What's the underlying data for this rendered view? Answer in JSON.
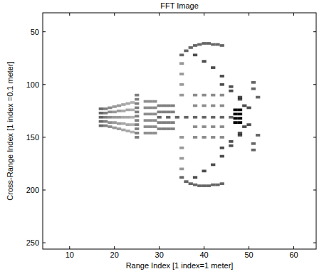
{
  "chart_data": {
    "type": "heatmap",
    "title": "FFT Image",
    "x_label": "Range Index  [1 index=1 meter]",
    "y_label": "Cross-Range Index  [1 index =0.1 meter]",
    "xlim": [
      4,
      65
    ],
    "xticks": [
      10,
      20,
      30,
      40,
      50,
      60
    ],
    "ylim": [
      32,
      256
    ],
    "yticks": [
      50,
      100,
      150,
      200,
      250
    ],
    "clim": [
      0,
      1
    ],
    "color": "#000000",
    "cells": [
      [
        17,
        123,
        0.6
      ],
      [
        17,
        127,
        0.6
      ],
      [
        17,
        131,
        0.6
      ],
      [
        17,
        135,
        0.6
      ],
      [
        17,
        139,
        0.6
      ],
      [
        18,
        123,
        0.5
      ],
      [
        18,
        127,
        0.5
      ],
      [
        18,
        131,
        0.5
      ],
      [
        18,
        135,
        0.5
      ],
      [
        18,
        139,
        0.5
      ],
      [
        19,
        122,
        0.45
      ],
      [
        19,
        126,
        0.45
      ],
      [
        19,
        131,
        0.45
      ],
      [
        19,
        136,
        0.45
      ],
      [
        19,
        140,
        0.45
      ],
      [
        20,
        121,
        0.4
      ],
      [
        20,
        126,
        0.4
      ],
      [
        20,
        131,
        0.4
      ],
      [
        20,
        136,
        0.4
      ],
      [
        20,
        141,
        0.4
      ],
      [
        21,
        120,
        0.4
      ],
      [
        21,
        125,
        0.4
      ],
      [
        21,
        131,
        0.4
      ],
      [
        21,
        137,
        0.4
      ],
      [
        21,
        142,
        0.4
      ],
      [
        22,
        119,
        0.35
      ],
      [
        22,
        125,
        0.35
      ],
      [
        22,
        131,
        0.35
      ],
      [
        22,
        137,
        0.35
      ],
      [
        22,
        143,
        0.35
      ],
      [
        23,
        118,
        0.35
      ],
      [
        23,
        124,
        0.35
      ],
      [
        23,
        131,
        0.35
      ],
      [
        23,
        138,
        0.35
      ],
      [
        23,
        144,
        0.35
      ],
      [
        24,
        117,
        0.3
      ],
      [
        24,
        124,
        0.3
      ],
      [
        24,
        131,
        0.3
      ],
      [
        24,
        138,
        0.3
      ],
      [
        24,
        145,
        0.3
      ],
      [
        25,
        110,
        0.5
      ],
      [
        25,
        114,
        0.5
      ],
      [
        25,
        118,
        0.5
      ],
      [
        25,
        122,
        0.5
      ],
      [
        25,
        126,
        0.5
      ],
      [
        25,
        130,
        0.5
      ],
      [
        25,
        134,
        0.5
      ],
      [
        25,
        138,
        0.5
      ],
      [
        25,
        142,
        0.5
      ],
      [
        25,
        146,
        0.5
      ],
      [
        25,
        150,
        0.5
      ],
      [
        27,
        116,
        0.45
      ],
      [
        27,
        122,
        0.45
      ],
      [
        27,
        128,
        0.45
      ],
      [
        27,
        134,
        0.45
      ],
      [
        27,
        140,
        0.45
      ],
      [
        27,
        146,
        0.45
      ],
      [
        28,
        116,
        0.45
      ],
      [
        28,
        122,
        0.45
      ],
      [
        28,
        128,
        0.45
      ],
      [
        28,
        134,
        0.45
      ],
      [
        28,
        140,
        0.45
      ],
      [
        28,
        146,
        0.45
      ],
      [
        29,
        116,
        0.45
      ],
      [
        29,
        122,
        0.45
      ],
      [
        29,
        128,
        0.45
      ],
      [
        29,
        134,
        0.45
      ],
      [
        29,
        140,
        0.45
      ],
      [
        29,
        146,
        0.45
      ],
      [
        30,
        120,
        0.5
      ],
      [
        30,
        126,
        0.5
      ],
      [
        30,
        136,
        0.5
      ],
      [
        30,
        142,
        0.5
      ],
      [
        31,
        120,
        0.5
      ],
      [
        31,
        126,
        0.5
      ],
      [
        31,
        136,
        0.5
      ],
      [
        31,
        142,
        0.5
      ],
      [
        32,
        120,
        0.5
      ],
      [
        32,
        126,
        0.5
      ],
      [
        32,
        136,
        0.5
      ],
      [
        32,
        142,
        0.5
      ],
      [
        33,
        120,
        0.5
      ],
      [
        33,
        126,
        0.5
      ],
      [
        33,
        136,
        0.5
      ],
      [
        33,
        142,
        0.5
      ],
      [
        30,
        131,
        0.6
      ],
      [
        32,
        131,
        0.6
      ],
      [
        34,
        131,
        0.6
      ],
      [
        36,
        131,
        0.6
      ],
      [
        38,
        131,
        0.6
      ],
      [
        40,
        131,
        0.6
      ],
      [
        42,
        131,
        0.6
      ],
      [
        44,
        131,
        0.6
      ],
      [
        46,
        131,
        0.6
      ],
      [
        47,
        124,
        1
      ],
      [
        47,
        128,
        1
      ],
      [
        47,
        132,
        1
      ],
      [
        47,
        136,
        1
      ],
      [
        48,
        124,
        1
      ],
      [
        48,
        128,
        1
      ],
      [
        48,
        132,
        1
      ],
      [
        48,
        136,
        1
      ],
      [
        35,
        72,
        0.6
      ],
      [
        36,
        68,
        0.6
      ],
      [
        37,
        65,
        0.6
      ],
      [
        38,
        63,
        0.6
      ],
      [
        39,
        62,
        0.6
      ],
      [
        40,
        61,
        0.6
      ],
      [
        41,
        61,
        0.6
      ],
      [
        42,
        62,
        0.6
      ],
      [
        43,
        62,
        0.6
      ],
      [
        44,
        63,
        0.6
      ],
      [
        35,
        188,
        0.6
      ],
      [
        36,
        192,
        0.6
      ],
      [
        37,
        194,
        0.6
      ],
      [
        38,
        195,
        0.6
      ],
      [
        39,
        196,
        0.6
      ],
      [
        40,
        196,
        0.6
      ],
      [
        41,
        196,
        0.6
      ],
      [
        42,
        195,
        0.6
      ],
      [
        43,
        195,
        0.6
      ],
      [
        44,
        194,
        0.6
      ],
      [
        35,
        80,
        0.4
      ],
      [
        35,
        90,
        0.4
      ],
      [
        35,
        100,
        0.4
      ],
      [
        35,
        110,
        0.4
      ],
      [
        35,
        150,
        0.4
      ],
      [
        35,
        160,
        0.4
      ],
      [
        35,
        170,
        0.4
      ],
      [
        35,
        180,
        0.4
      ],
      [
        38,
        72,
        0.7
      ],
      [
        40,
        78,
        0.7
      ],
      [
        42,
        84,
        0.7
      ],
      [
        44,
        92,
        0.7
      ],
      [
        46,
        102,
        0.7
      ],
      [
        48,
        112,
        0.7
      ],
      [
        50,
        122,
        0.7
      ],
      [
        50,
        138,
        0.7
      ],
      [
        48,
        148,
        0.7
      ],
      [
        46,
        158,
        0.7
      ],
      [
        44,
        168,
        0.7
      ],
      [
        42,
        176,
        0.7
      ],
      [
        40,
        182,
        0.7
      ],
      [
        38,
        188,
        0.7
      ],
      [
        44,
        100,
        0.7
      ],
      [
        46,
        106,
        0.7
      ],
      [
        48,
        114,
        0.7
      ],
      [
        49,
        120,
        0.7
      ],
      [
        49,
        140,
        0.7
      ],
      [
        48,
        146,
        0.7
      ],
      [
        46,
        154,
        0.7
      ],
      [
        44,
        160,
        0.7
      ],
      [
        51,
        98,
        0.6
      ],
      [
        51,
        104,
        0.6
      ],
      [
        52,
        112,
        0.6
      ],
      [
        52,
        148,
        0.6
      ],
      [
        51,
        156,
        0.6
      ],
      [
        51,
        162,
        0.6
      ],
      [
        38,
        110,
        0.45
      ],
      [
        38,
        120,
        0.45
      ],
      [
        38,
        140,
        0.45
      ],
      [
        38,
        150,
        0.45
      ],
      [
        40,
        110,
        0.45
      ],
      [
        40,
        120,
        0.45
      ],
      [
        40,
        140,
        0.45
      ],
      [
        40,
        150,
        0.45
      ],
      [
        42,
        110,
        0.45
      ],
      [
        42,
        120,
        0.45
      ],
      [
        42,
        140,
        0.45
      ],
      [
        42,
        150,
        0.45
      ],
      [
        44,
        110,
        0.45
      ],
      [
        44,
        120,
        0.45
      ],
      [
        44,
        140,
        0.45
      ],
      [
        44,
        150,
        0.45
      ]
    ]
  }
}
